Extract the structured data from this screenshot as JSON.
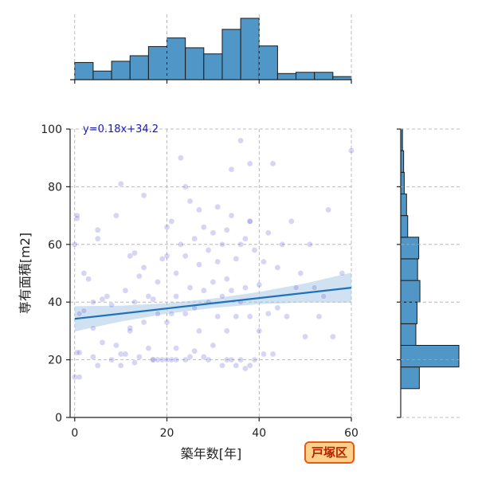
{
  "chart_data": {
    "type": "scatter",
    "title": "",
    "xlabel": "築年数[年]",
    "ylabel": "専有面積[m2]",
    "xlim": [
      -1,
      60
    ],
    "ylim": [
      0,
      100
    ],
    "xticks": [
      0,
      20,
      40,
      60
    ],
    "yticks": [
      0,
      20,
      40,
      60,
      80,
      100
    ],
    "grid": true,
    "regression": {
      "label": "y=0.18x+34.2",
      "slope": 0.18,
      "intercept": 34.2
    },
    "badge": "戸塚区",
    "x_histogram": {
      "bin_edges": [
        0,
        4,
        8,
        12,
        16,
        20,
        24,
        28,
        32,
        36,
        40,
        44,
        48,
        52,
        56,
        60
      ],
      "relative_heights": [
        0.28,
        0.14,
        0.3,
        0.39,
        0.54,
        0.68,
        0.52,
        0.42,
        0.82,
        1.0,
        0.55,
        0.1,
        0.12,
        0.12,
        0.05
      ]
    },
    "y_histogram": {
      "bin_edges": [
        10,
        17.5,
        25,
        32.5,
        40,
        47.5,
        55,
        62.5,
        70,
        77.5,
        85,
        92.5,
        100
      ],
      "relative_widths": [
        0.32,
        1.0,
        0.26,
        0.28,
        0.33,
        0.29,
        0.31,
        0.12,
        0.1,
        0.06,
        0.05,
        0.03
      ]
    },
    "series": [
      {
        "points": [
          [
            0,
            14
          ],
          [
            1,
            14
          ],
          [
            0.5,
            22.5
          ],
          [
            1,
            22.5
          ],
          [
            0,
            60
          ],
          [
            0.5,
            69
          ],
          [
            0.5,
            70
          ],
          [
            1,
            36
          ],
          [
            2,
            50
          ],
          [
            2,
            37
          ],
          [
            3,
            48
          ],
          [
            4,
            40
          ],
          [
            4,
            31
          ],
          [
            4,
            21
          ],
          [
            5,
            18
          ],
          [
            5,
            65
          ],
          [
            5,
            62
          ],
          [
            6,
            41
          ],
          [
            6,
            26
          ],
          [
            7,
            42
          ],
          [
            8,
            20
          ],
          [
            8,
            39
          ],
          [
            9,
            25
          ],
          [
            9,
            70
          ],
          [
            10,
            81
          ],
          [
            10,
            22
          ],
          [
            10,
            18
          ],
          [
            11,
            22
          ],
          [
            11,
            44
          ],
          [
            12,
            31
          ],
          [
            12,
            56
          ],
          [
            13,
            57
          ],
          [
            13,
            40
          ],
          [
            13,
            19
          ],
          [
            14,
            21
          ],
          [
            14,
            49
          ],
          [
            15,
            77
          ],
          [
            15,
            33
          ],
          [
            16,
            24
          ],
          [
            16,
            42
          ],
          [
            17,
            20
          ],
          [
            17,
            20
          ],
          [
            17,
            41
          ],
          [
            18,
            20
          ],
          [
            18,
            47
          ],
          [
            19,
            20
          ],
          [
            19,
            55
          ],
          [
            20,
            20
          ],
          [
            20,
            33
          ],
          [
            21,
            36
          ],
          [
            21,
            20
          ],
          [
            21,
            68
          ],
          [
            22,
            50
          ],
          [
            22,
            24
          ],
          [
            22,
            20
          ],
          [
            23,
            90
          ],
          [
            23,
            60
          ],
          [
            24,
            80
          ],
          [
            24,
            36
          ],
          [
            24,
            20
          ],
          [
            25,
            75
          ],
          [
            25,
            45
          ],
          [
            25,
            21
          ],
          [
            26,
            62
          ],
          [
            26,
            38
          ],
          [
            26,
            23
          ],
          [
            27,
            72
          ],
          [
            27,
            53
          ],
          [
            27,
            30
          ],
          [
            28,
            66
          ],
          [
            28,
            44
          ],
          [
            28,
            21
          ],
          [
            29,
            58
          ],
          [
            29,
            40
          ],
          [
            29,
            20
          ],
          [
            30,
            64
          ],
          [
            30,
            47
          ],
          [
            30,
            25
          ],
          [
            31,
            73
          ],
          [
            31,
            54
          ],
          [
            31,
            35
          ],
          [
            32,
            60
          ],
          [
            32,
            42
          ],
          [
            32,
            18
          ],
          [
            33,
            48
          ],
          [
            33,
            30
          ],
          [
            33,
            20
          ],
          [
            34,
            86
          ],
          [
            34,
            70
          ],
          [
            34,
            44
          ],
          [
            34,
            20
          ],
          [
            35,
            55
          ],
          [
            35,
            35
          ],
          [
            35,
            18
          ],
          [
            36,
            60
          ],
          [
            36,
            40
          ],
          [
            36,
            96
          ],
          [
            36,
            20
          ],
          [
            37,
            62
          ],
          [
            37,
            45
          ],
          [
            37,
            17
          ],
          [
            38,
            68
          ],
          [
            38,
            35
          ],
          [
            38,
            18
          ],
          [
            39,
            58
          ],
          [
            39,
            20
          ],
          [
            40,
            46
          ],
          [
            40,
            30
          ],
          [
            41,
            54
          ],
          [
            41,
            22
          ],
          [
            42,
            64
          ],
          [
            42,
            36
          ],
          [
            43,
            88
          ],
          [
            43,
            22
          ],
          [
            44,
            52
          ],
          [
            44,
            38
          ],
          [
            45,
            60
          ],
          [
            46,
            35
          ],
          [
            47,
            68
          ],
          [
            48,
            45
          ],
          [
            49,
            50
          ],
          [
            50,
            28
          ],
          [
            51,
            60
          ],
          [
            52,
            45
          ],
          [
            53,
            35
          ],
          [
            54,
            42
          ],
          [
            55,
            72
          ],
          [
            56,
            28
          ],
          [
            58,
            50
          ],
          [
            60,
            92.5
          ],
          [
            38,
            68
          ],
          [
            38,
            88
          ],
          [
            33,
            65
          ],
          [
            24,
            56
          ],
          [
            20,
            56
          ],
          [
            20,
            66
          ],
          [
            15,
            52
          ],
          [
            12,
            30
          ],
          [
            18,
            36
          ],
          [
            22,
            42
          ]
        ]
      }
    ]
  }
}
